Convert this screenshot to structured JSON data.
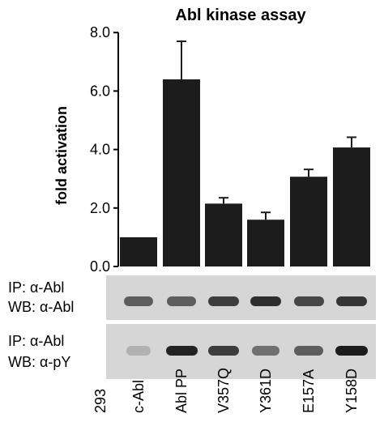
{
  "chart_data": {
    "type": "bar",
    "title": "Abl kinase assay",
    "xlabel": "",
    "ylabel": "fold activation",
    "ylim": [
      0,
      8
    ],
    "yticks": [
      "0.0",
      "2.0",
      "4.0",
      "6.0",
      "8.0"
    ],
    "categories": [
      "293",
      "c-Abl",
      "Abl PP",
      "V357Q",
      "Y361D",
      "E157A",
      "Y158D"
    ],
    "values": [
      null,
      1.0,
      6.4,
      2.15,
      1.6,
      3.07,
      4.07
    ],
    "errors": [
      null,
      0,
      1.3,
      0.2,
      0.25,
      0.25,
      0.35
    ],
    "bar_color": "#1c1c1c",
    "grid": false,
    "legend": "none"
  },
  "blots": [
    {
      "ip_label": "IP: α-Abl",
      "wb_label": "WB: α-Abl",
      "band_intensity": [
        0,
        0.55,
        0.55,
        0.75,
        0.85,
        0.7,
        0.8
      ]
    },
    {
      "ip_label": "IP: α-Abl",
      "wb_label": "WB: α-pY",
      "band_intensity": [
        0,
        0.05,
        0.9,
        0.75,
        0.45,
        0.55,
        0.95
      ]
    }
  ]
}
